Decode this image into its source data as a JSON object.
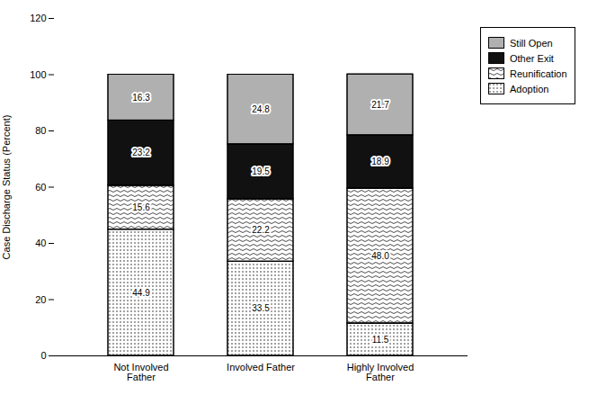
{
  "chart_data": {
    "type": "bar",
    "stacked": true,
    "categories": [
      "Not Involved\nFather",
      "Involved Father",
      "Highly Involved\nFather"
    ],
    "series": [
      {
        "name": "Adoption",
        "color": "#ffffff",
        "values": [
          44.9,
          33.5,
          11.5
        ]
      },
      {
        "name": "Reunification",
        "color": "#ffffff",
        "values": [
          15.6,
          22.2,
          48.0
        ],
        "value_labels": [
          "15.6",
          "22.2",
          "48.0"
        ]
      },
      {
        "name": "Other Exit",
        "color": "#111111",
        "values": [
          23.2,
          19.5,
          18.9
        ]
      },
      {
        "name": "Still Open",
        "color": "#b0b0b0",
        "values": [
          16.3,
          24.8,
          21.7
        ]
      }
    ],
    "ylabel": "Case Discharge Status (Percent)",
    "ylim": [
      0,
      120
    ],
    "yticks": [
      0,
      20,
      40,
      60,
      80,
      100,
      120
    ],
    "grid": false,
    "legend": "right",
    "data_labels": true
  }
}
